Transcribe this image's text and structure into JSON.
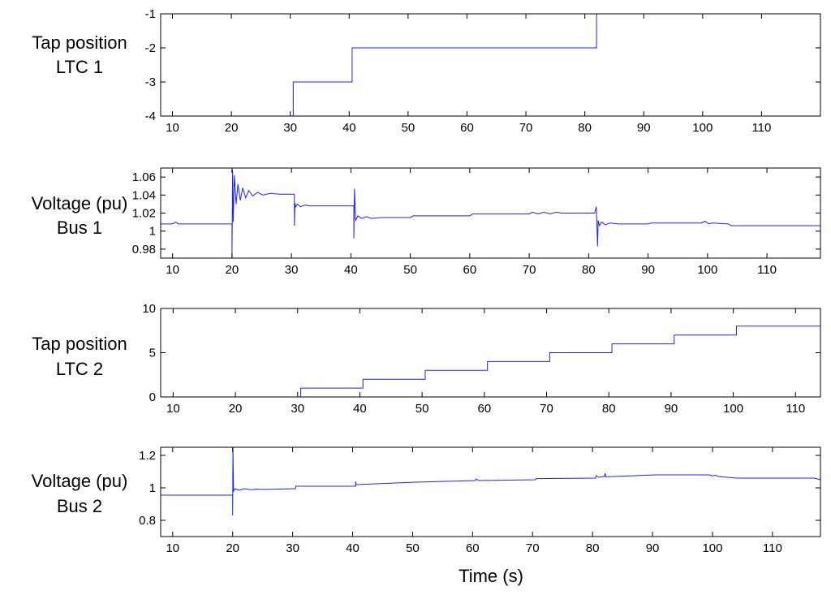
{
  "colors": {
    "series": "#2020ff",
    "axes": "#000000",
    "background": "#ffffff"
  },
  "chart_data": [
    {
      "type": "line",
      "title": "",
      "ylabel_lines": [
        "Tap position",
        "LTC 1"
      ],
      "xlabel": "",
      "xlim": [
        8,
        120
      ],
      "ylim": [
        -4,
        -1
      ],
      "xticks": [
        10,
        20,
        30,
        40,
        50,
        60,
        70,
        80,
        90,
        100,
        110
      ],
      "yticks": [
        -4,
        -3,
        -2,
        -1
      ],
      "step": true,
      "series": [
        {
          "x": [
            8,
            30.5,
            40.5,
            82,
            120
          ],
          "y": [
            -4,
            -3,
            -2,
            -1,
            -1
          ]
        }
      ]
    },
    {
      "type": "line",
      "title": "",
      "ylabel_lines": [
        "Voltage (pu)",
        "Bus 1"
      ],
      "xlabel": "",
      "xlim": [
        8,
        119
      ],
      "ylim": [
        0.97,
        1.07
      ],
      "xticks": [
        10,
        20,
        30,
        40,
        50,
        60,
        70,
        80,
        90,
        100,
        110
      ],
      "yticks": [
        0.98,
        1,
        1.02,
        1.04,
        1.06
      ],
      "yticklabels": [
        "0.98",
        "1",
        "1.02",
        "1.04",
        "1.06"
      ],
      "step": false,
      "series": [
        {
          "x": [
            8,
            10,
            10.5,
            11,
            20,
            20,
            20.1,
            20.2,
            20.4,
            20.7,
            21,
            21.4,
            21.8,
            22.3,
            22.8,
            23.5,
            24.3,
            25.2,
            26.5,
            28,
            30.5,
            30.5,
            30.6,
            30.7,
            31,
            31.5,
            32.3,
            33,
            40.5,
            40.5,
            40.6,
            40.8,
            41.2,
            41.8,
            42.6,
            43.5,
            45,
            50,
            50.5,
            60,
            60.5,
            70,
            70.5,
            71.5,
            72.5,
            73.5,
            74.5,
            75.5,
            81,
            81.3,
            81.5,
            81.6,
            81.8,
            82.2,
            82.8,
            83.6,
            85,
            90,
            90.5,
            99,
            99.6,
            100.2,
            100.8,
            103.5,
            104,
            119
          ],
          "y": [
            1.008,
            1.008,
            1.01,
            1.008,
            1.008,
            0.97,
            1.068,
            1.01,
            1.062,
            1.03,
            1.052,
            1.034,
            1.048,
            1.037,
            1.045,
            1.039,
            1.043,
            1.04,
            1.042,
            1.041,
            1.041,
            1.006,
            1.031,
            1.027,
            1.03,
            1.027,
            1.029,
            1.028,
            1.028,
            0.992,
            1.047,
            1.012,
            1.017,
            1.014,
            1.016,
            1.014,
            1.015,
            1.015,
            1.017,
            1.017,
            1.019,
            1.019,
            1.021,
            1.019,
            1.021,
            1.019,
            1.021,
            1.02,
            1.02,
            1.027,
            0.983,
            1.012,
            1.006,
            1.01,
            1.007,
            1.009,
            1.008,
            1.008,
            1.009,
            1.009,
            1.011,
            1.008,
            1.009,
            1.008,
            1.006,
            1.006
          ]
        }
      ]
    },
    {
      "type": "line",
      "title": "",
      "ylabel_lines": [
        "Tap position",
        "LTC 2"
      ],
      "xlabel": "",
      "xlim": [
        8,
        114
      ],
      "ylim": [
        0,
        10
      ],
      "xticks": [
        10,
        20,
        30,
        40,
        50,
        60,
        70,
        80,
        90,
        100,
        110
      ],
      "yticks": [
        0,
        5,
        10
      ],
      "step": true,
      "series": [
        {
          "x": [
            8,
            30.5,
            40.5,
            50.5,
            60.5,
            70.5,
            80.5,
            90.5,
            100.5,
            114
          ],
          "y": [
            0,
            1,
            2,
            3,
            4,
            5,
            6,
            7,
            8,
            8
          ]
        }
      ]
    },
    {
      "type": "line",
      "title": "",
      "ylabel_lines": [
        "Voltage (pu)",
        "Bus 2"
      ],
      "xlabel": "Time (s)",
      "xlim": [
        8,
        118
      ],
      "ylim": [
        0.7,
        1.25
      ],
      "xticks": [
        10,
        20,
        30,
        40,
        50,
        60,
        70,
        80,
        90,
        100,
        110
      ],
      "yticks": [
        0.8,
        1,
        1.2
      ],
      "yticklabels": [
        "0.8",
        "1",
        "1.2"
      ],
      "step": false,
      "series": [
        {
          "x": [
            8,
            20,
            20,
            20.05,
            20.15,
            20.4,
            21,
            22,
            23,
            24,
            25,
            30.5,
            30.5,
            40.5,
            40.5,
            40.6,
            50.5,
            60.5,
            60.6,
            61,
            70.5,
            70.6,
            80.5,
            80.6,
            81,
            82,
            82.1,
            82.2,
            90.5,
            99.5,
            100,
            100.5,
            101,
            104,
            117,
            118
          ],
          "y": [
            0.955,
            0.955,
            0.83,
            1.25,
            0.98,
            0.995,
            0.985,
            0.995,
            0.988,
            0.992,
            0.99,
            0.995,
            1.01,
            1.01,
            1.04,
            1.02,
            1.035,
            1.045,
            1.055,
            1.045,
            1.05,
            1.057,
            1.06,
            1.075,
            1.065,
            1.07,
            1.09,
            1.068,
            1.08,
            1.08,
            1.073,
            1.078,
            1.07,
            1.06,
            1.06,
            1.05
          ]
        }
      ]
    }
  ]
}
